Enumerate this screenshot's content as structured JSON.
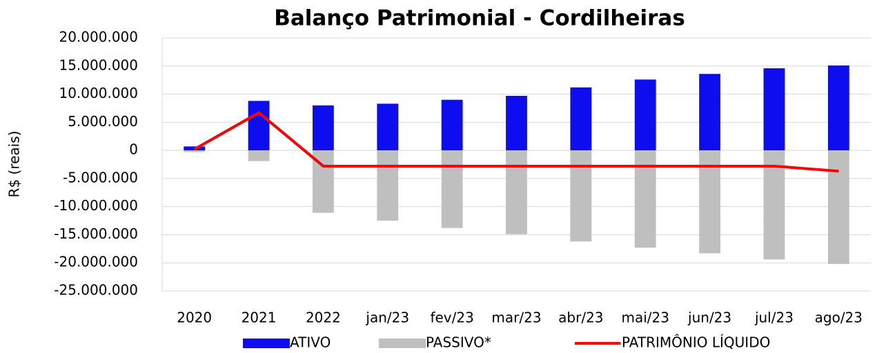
{
  "chart_data": {
    "type": "bar_line",
    "title": "Balanço Patrimonial - Cordilheiras",
    "y_label": "R$ (reais)",
    "categories": [
      "2020",
      "2021",
      "2022",
      "jan/23",
      "fev/23",
      "mar/23",
      "abr/23",
      "mai/23",
      "jun/23",
      "jul/23",
      "ago/23"
    ],
    "series": [
      {
        "name": "ATIVO",
        "type": "bar",
        "color": "#0d0df0",
        "values": [
          700000,
          8800000,
          8000000,
          8300000,
          9000000,
          9700000,
          11200000,
          12600000,
          13600000,
          14600000,
          15100000
        ]
      },
      {
        "name": "PASSIVO*",
        "type": "bar",
        "color": "#bfbfbf",
        "values": [
          -300000,
          -1900000,
          -11100000,
          -12500000,
          -13800000,
          -14900000,
          -16200000,
          -17300000,
          -18300000,
          -19400000,
          -20200000
        ]
      },
      {
        "name": "PATRIMÔNIO LÍQUIDO",
        "type": "line",
        "color": "#ff0000",
        "values": [
          200000,
          6700000,
          -2800000,
          -2800000,
          -2800000,
          -2800000,
          -2800000,
          -2800000,
          -2800000,
          -2800000,
          -3700000
        ]
      }
    ],
    "ylim": [
      -25000000,
      20000000
    ],
    "yticks": [
      {
        "value": -25000000,
        "label": "-25.000.000"
      },
      {
        "value": -20000000,
        "label": "-20.000.000"
      },
      {
        "value": -15000000,
        "label": "-15.000.000"
      },
      {
        "value": -10000000,
        "label": "-10.000.000"
      },
      {
        "value": -5000000,
        "label": "-5.000.000"
      },
      0,
      {
        "value": 5000000,
        "label": "5.000.000"
      },
      {
        "value": 10000000,
        "label": "10.000.000"
      },
      {
        "value": 15000000,
        "label": "15.000.000"
      },
      {
        "value": 20000000,
        "label": "20.000.000"
      }
    ],
    "negative_tick_color": "#ff0000",
    "grid": true,
    "legend": "bottom"
  }
}
